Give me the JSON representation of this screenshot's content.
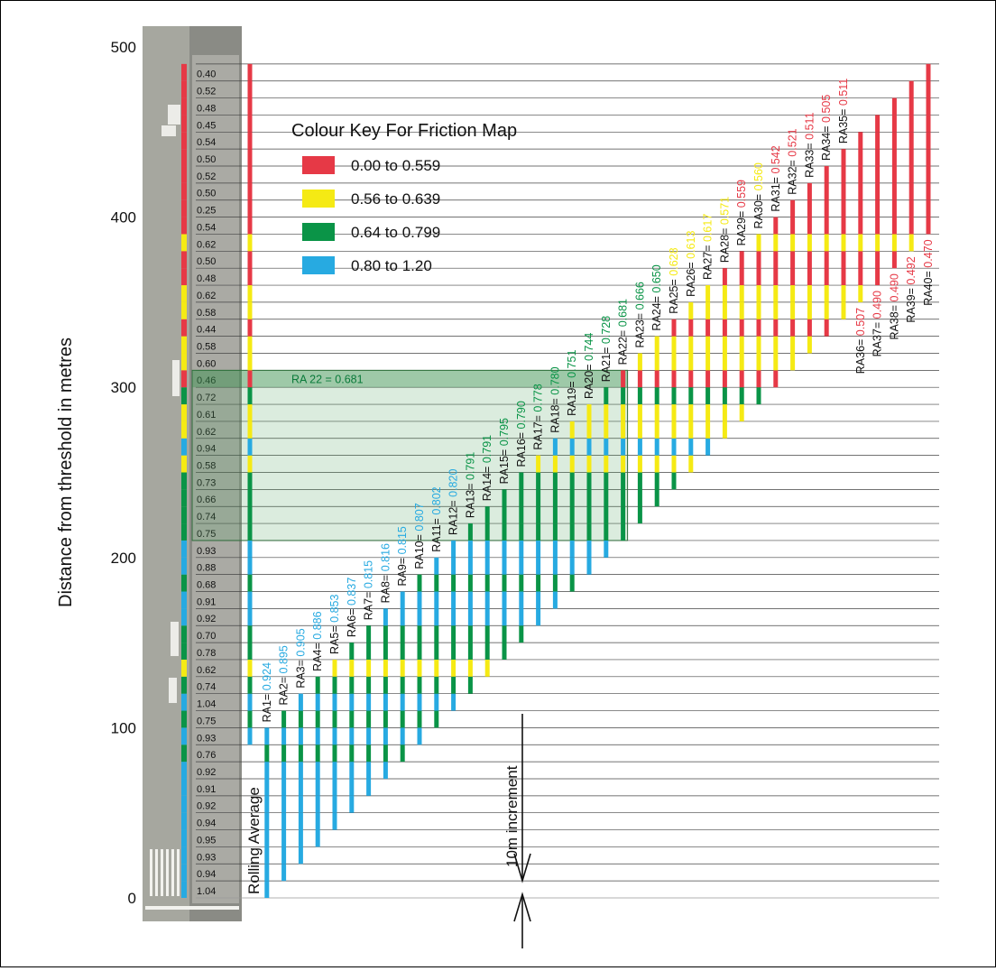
{
  "chart_data": {
    "type": "bar",
    "ylabel": "Distance from threshold in metres",
    "y_ticks": [
      0,
      100,
      200,
      300,
      400,
      500
    ],
    "ylim": [
      0,
      500
    ],
    "key_title": "Colour Key For Friction Map",
    "key": [
      {
        "label": "0.00 to 0.559",
        "min": 0.0,
        "max": 0.559,
        "color": "#e63946"
      },
      {
        "label": "0.56 to 0.639",
        "min": 0.56,
        "max": 0.639,
        "color": "#f5ea14"
      },
      {
        "label": "0.64 to 0.799",
        "min": 0.64,
        "max": 0.799,
        "color": "#0a9447"
      },
      {
        "label": "0.80 to 1.20",
        "min": 0.8,
        "max": 1.2,
        "color": "#27aae1"
      }
    ],
    "friction_readings": [
      1.04,
      0.94,
      0.93,
      0.95,
      0.94,
      0.92,
      0.91,
      0.92,
      0.76,
      0.93,
      0.75,
      1.04,
      0.74,
      0.62,
      0.78,
      0.7,
      0.92,
      0.91,
      0.68,
      0.88,
      0.93,
      0.75,
      0.74,
      0.66,
      0.73,
      0.58,
      0.94,
      0.62,
      0.61,
      0.72,
      0.46,
      0.6,
      0.58,
      0.44,
      0.58,
      0.62,
      0.48,
      0.5,
      0.62,
      0.54,
      0.25,
      0.5,
      0.52,
      0.5,
      0.54,
      0.45,
      0.48,
      0.52,
      0.4
    ],
    "reading_interval_m": 10,
    "rolling_average_label": "Rolling Average",
    "rolling_averages": [
      {
        "label": "RA1= 0.924",
        "value": 0.924,
        "from": 0,
        "to": 100
      },
      {
        "label": "RA2= 0.895",
        "value": 0.895,
        "from": 10,
        "to": 110
      },
      {
        "label": "RA3= 0.905",
        "value": 0.905,
        "from": 20,
        "to": 120
      },
      {
        "label": "RA4= 0.886",
        "value": 0.886,
        "from": 30,
        "to": 130
      },
      {
        "label": "RA5= 0.853",
        "value": 0.853,
        "from": 40,
        "to": 140
      },
      {
        "label": "RA6= 0.837",
        "value": 0.837,
        "from": 50,
        "to": 150
      },
      {
        "label": "RA7= 0.815",
        "value": 0.815,
        "from": 60,
        "to": 160
      },
      {
        "label": "RA8= 0.816",
        "value": 0.816,
        "from": 70,
        "to": 170
      },
      {
        "label": "RA9= 0.815",
        "value": 0.815,
        "from": 80,
        "to": 180
      },
      {
        "label": "RA10= 0.807",
        "value": 0.807,
        "from": 90,
        "to": 190
      },
      {
        "label": "RA11= 0.802",
        "value": 0.802,
        "from": 100,
        "to": 200
      },
      {
        "label": "RA12= 0.820",
        "value": 0.82,
        "from": 110,
        "to": 210
      },
      {
        "label": "RA13= 0.791",
        "value": 0.791,
        "from": 120,
        "to": 220
      },
      {
        "label": "RA14= 0.791",
        "value": 0.791,
        "from": 130,
        "to": 230
      },
      {
        "label": "RA15= 0.795",
        "value": 0.795,
        "from": 140,
        "to": 240
      },
      {
        "label": "RA16= 0.790",
        "value": 0.79,
        "from": 150,
        "to": 250
      },
      {
        "label": "RA17= 0.778",
        "value": 0.778,
        "from": 160,
        "to": 260
      },
      {
        "label": "RA18= 0.780",
        "value": 0.78,
        "from": 170,
        "to": 270
      },
      {
        "label": "RA19= 0.751",
        "value": 0.751,
        "from": 180,
        "to": 280
      },
      {
        "label": "RA20= 0.744",
        "value": 0.744,
        "from": 190,
        "to": 290
      },
      {
        "label": "RA21= 0.728",
        "value": 0.728,
        "from": 200,
        "to": 300
      },
      {
        "label": "RA22= 0.681",
        "value": 0.681,
        "from": 210,
        "to": 310
      },
      {
        "label": "RA23= 0.666",
        "value": 0.666,
        "from": 220,
        "to": 320
      },
      {
        "label": "RA24= 0.650",
        "value": 0.65,
        "from": 230,
        "to": 330
      },
      {
        "label": "RA25= 0.628",
        "value": 0.628,
        "from": 240,
        "to": 340
      },
      {
        "label": "RA26= 0.613",
        "value": 0.613,
        "from": 250,
        "to": 350
      },
      {
        "label": "RA27= 0.617",
        "value": 0.617,
        "from": 260,
        "to": 360
      },
      {
        "label": "RA28= 0.571",
        "value": 0.571,
        "from": 270,
        "to": 370
      },
      {
        "label": "RA29= 0.559",
        "value": 0.559,
        "from": 280,
        "to": 380
      },
      {
        "label": "RA30= 0.560",
        "value": 0.56,
        "from": 290,
        "to": 390
      },
      {
        "label": "RA31= 0.542",
        "value": 0.542,
        "from": 300,
        "to": 400
      },
      {
        "label": "RA32= 0.521",
        "value": 0.521,
        "from": 310,
        "to": 410
      },
      {
        "label": "RA33= 0.511",
        "value": 0.511,
        "from": 320,
        "to": 420
      },
      {
        "label": "RA34= 0.505",
        "value": 0.505,
        "from": 330,
        "to": 430
      },
      {
        "label": "RA35= 0.511",
        "value": 0.511,
        "from": 340,
        "to": 440
      },
      {
        "label": "RA36= 0.507",
        "value": 0.507,
        "from": 350,
        "to": 450
      },
      {
        "label": "RA37= 0.490",
        "value": 0.49,
        "from": 360,
        "to": 460
      },
      {
        "label": "RA38= 0.490",
        "value": 0.49,
        "from": 370,
        "to": 470
      },
      {
        "label": "RA39= 0.492",
        "value": 0.492,
        "from": 380,
        "to": 480
      },
      {
        "label": "RA40= 0.470",
        "value": 0.47,
        "from": 390,
        "to": 490
      }
    ],
    "highlight": {
      "label": "RA 22 = 0.681",
      "from": 210,
      "to": 310,
      "value": 0.681
    },
    "increment_label": "10m increment"
  }
}
